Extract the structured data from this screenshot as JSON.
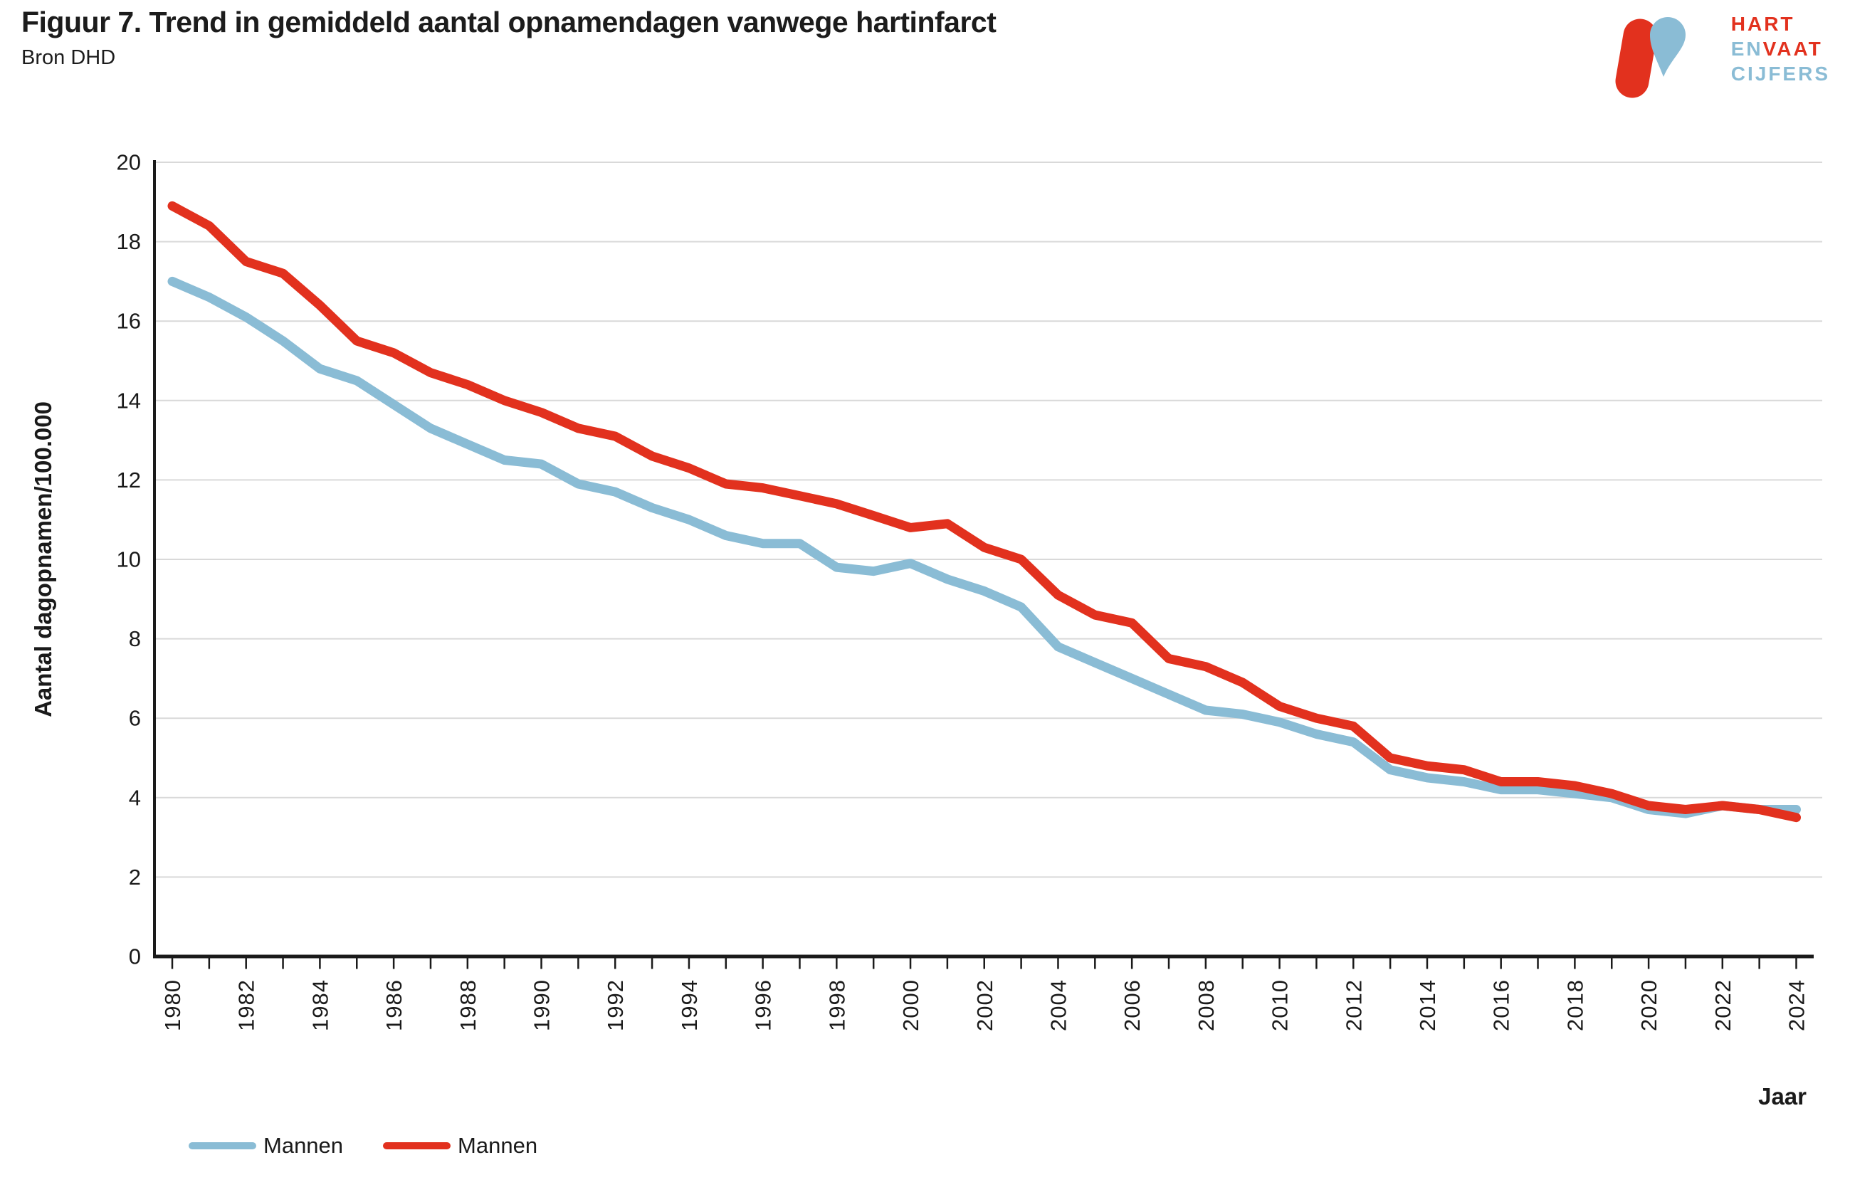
{
  "header": {
    "title": "Figuur 7. Trend in gemiddeld aantal opnamendagen vanwege hartinfarct",
    "source": "Bron DHD"
  },
  "logo": {
    "line1": "HART",
    "line2a": "EN",
    "line2b": "VAAT",
    "line3": "CIJFERS",
    "red": "#e2311e",
    "blue": "#8abcd5"
  },
  "colors": {
    "grid": "#d9d9d9",
    "axis": "#1a1a1a",
    "text": "#1a1a1a"
  },
  "chart_data": {
    "type": "line",
    "title": "Figuur 7. Trend in gemiddeld aantal opnamendagen vanwege hartinfarct",
    "source": "Bron DHD",
    "xlabel": "Jaar",
    "ylabel": "Aantal dagopnamen/100.000",
    "ylim": [
      0,
      20
    ],
    "ytick_step": 2,
    "xtick_label_step": 2,
    "grid": true,
    "legend_position": "bottom-left",
    "x": [
      1980,
      1981,
      1982,
      1983,
      1984,
      1985,
      1986,
      1987,
      1988,
      1989,
      1990,
      1991,
      1992,
      1993,
      1994,
      1995,
      1996,
      1997,
      1998,
      1999,
      2000,
      2001,
      2002,
      2003,
      2004,
      2005,
      2006,
      2007,
      2008,
      2009,
      2010,
      2011,
      2012,
      2013,
      2014,
      2015,
      2016,
      2017,
      2018,
      2019,
      2020,
      2021,
      2022,
      2023,
      2024
    ],
    "series": [
      {
        "name": "Mannen",
        "color": "#8abcd5",
        "values": [
          17.0,
          16.6,
          16.1,
          15.5,
          14.8,
          14.5,
          13.9,
          13.3,
          12.9,
          12.5,
          12.4,
          11.9,
          11.7,
          11.3,
          11.0,
          10.6,
          10.4,
          10.4,
          9.8,
          9.7,
          9.9,
          9.5,
          9.2,
          8.8,
          7.8,
          7.4,
          7.0,
          6.6,
          6.2,
          6.1,
          5.9,
          5.6,
          5.4,
          4.7,
          4.5,
          4.4,
          4.2,
          4.2,
          4.1,
          4.0,
          3.7,
          3.6,
          3.8,
          3.7,
          3.7
        ]
      },
      {
        "name": "Mannen",
        "color": "#e2311e",
        "values": [
          18.9,
          18.4,
          17.5,
          17.2,
          16.4,
          15.5,
          15.2,
          14.7,
          14.4,
          14.0,
          13.7,
          13.3,
          13.1,
          12.6,
          12.3,
          11.9,
          11.8,
          11.6,
          11.4,
          11.1,
          10.8,
          10.9,
          10.3,
          10.0,
          9.1,
          8.6,
          8.4,
          7.5,
          7.3,
          6.9,
          6.3,
          6.0,
          5.8,
          5.0,
          4.8,
          4.7,
          4.4,
          4.4,
          4.3,
          4.1,
          3.8,
          3.7,
          3.8,
          3.7,
          3.5
        ]
      }
    ]
  }
}
